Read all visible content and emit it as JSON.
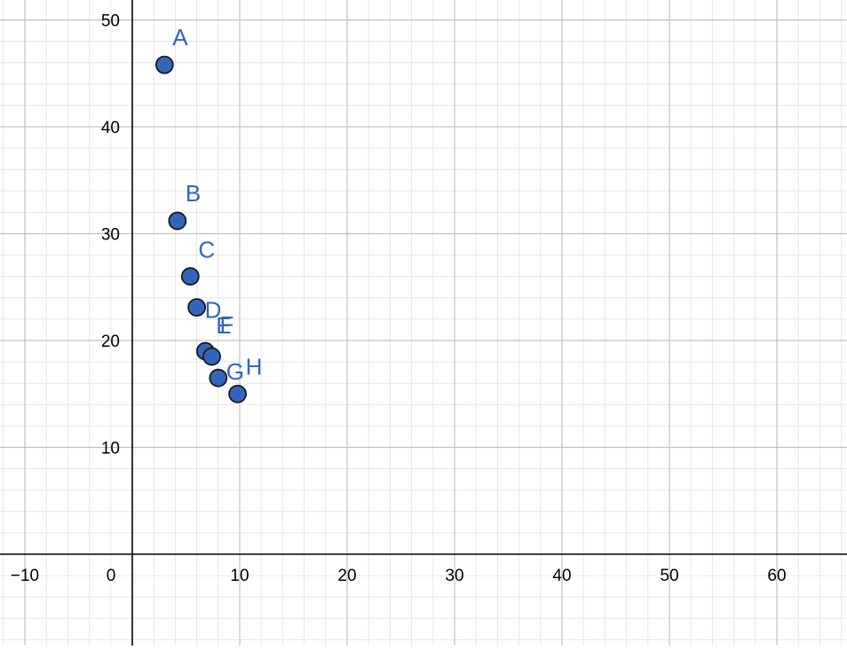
{
  "chart_data": {
    "type": "scatter",
    "title": "",
    "xlabel": "",
    "ylabel": "",
    "xlim": [
      -12,
      66
    ],
    "ylim": [
      -8.5,
      52
    ],
    "grid": true,
    "minor_grid": true,
    "x_tick_labels": [
      "−10",
      "0",
      "10",
      "20",
      "30",
      "40",
      "50",
      "60"
    ],
    "y_tick_labels": [
      "10",
      "20",
      "30",
      "40",
      "50"
    ],
    "x_ticks": [
      -10,
      0,
      10,
      20,
      30,
      40,
      50,
      60
    ],
    "y_ticks": [
      10,
      20,
      30,
      40,
      50
    ],
    "point_color": "#3366BB",
    "label_color": "#3366BB",
    "points": [
      {
        "label": "A",
        "x": 3.0,
        "y": 45.8
      },
      {
        "label": "B",
        "x": 4.2,
        "y": 31.2
      },
      {
        "label": "C",
        "x": 5.4,
        "y": 26.0
      },
      {
        "label": "D",
        "x": 6.0,
        "y": 23.1
      },
      {
        "label": "E",
        "x": 6.8,
        "y": 19.0
      },
      {
        "label": "F",
        "x": 7.4,
        "y": 18.5
      },
      {
        "label": "G",
        "x": 8.0,
        "y": 16.5
      },
      {
        "label": "H",
        "x": 9.8,
        "y": 15.0
      }
    ]
  }
}
